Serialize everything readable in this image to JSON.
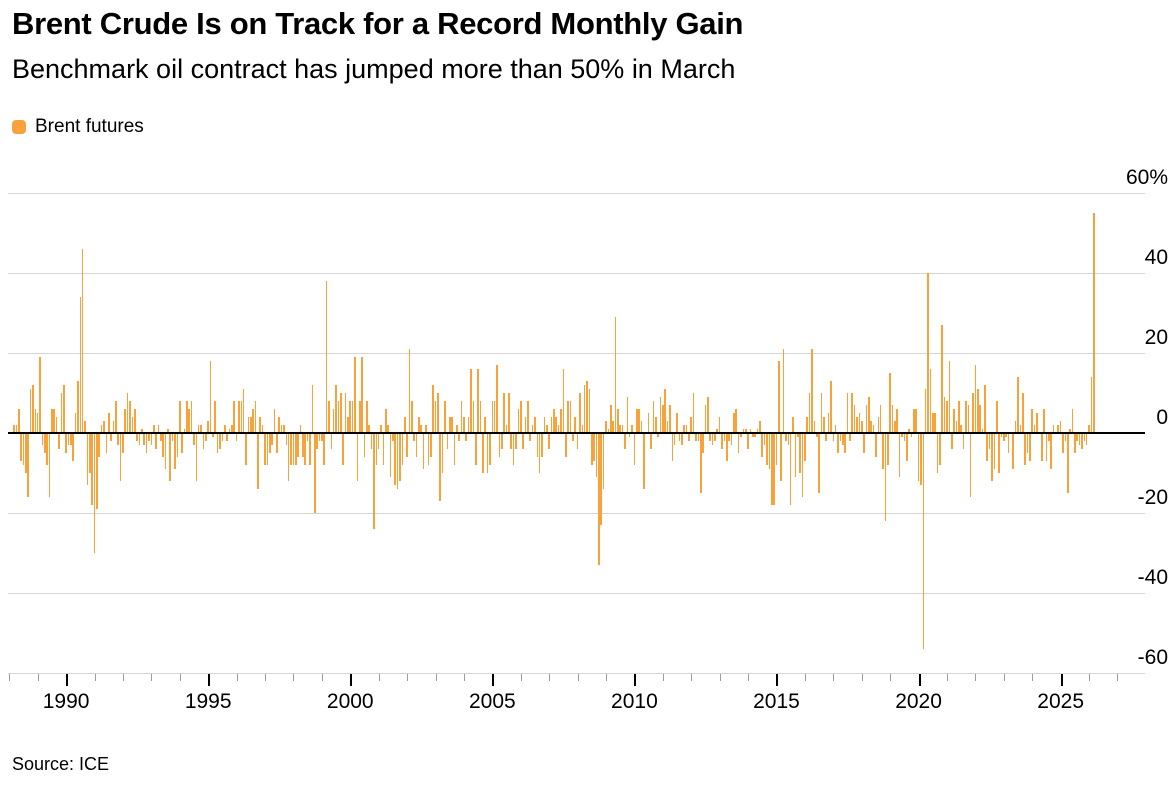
{
  "header": {
    "title": "Brent Crude Is on Track for a Record Monthly Gain",
    "subtitle": "Benchmark oil contract has jumped more than 50% in March"
  },
  "legend": {
    "label": "Brent futures"
  },
  "source": "Source: ICE",
  "colors": {
    "bar": "#F8A23C",
    "grid": "#d5d5d5",
    "zero_line": "#000000",
    "minor_tick": "#9b9b9b",
    "major_tick": "#000000"
  },
  "chart_data": {
    "type": "bar",
    "title": "Brent Crude Is on Track for a Record Monthly Gain",
    "subtitle": "Benchmark oil contract has jumped more than 50% in March",
    "series_name": "Brent futures",
    "unit": "% monthly change",
    "frequency": "monthly",
    "start": "1988-03",
    "end": "2026-03",
    "ylim": [
      -60,
      60
    ],
    "grid": true,
    "legend_position": "top-left",
    "y_axis": {
      "ticks": [
        60,
        40,
        20,
        0,
        -20,
        -40,
        -60
      ],
      "tick_labels": [
        "60%",
        "40",
        "20",
        "0",
        "-20",
        "-40",
        "-60"
      ],
      "side": "right"
    },
    "x_axis": {
      "minor_tick_years_start": 1988,
      "minor_tick_years_end": 2027,
      "major_tick_years": [
        1990,
        1995,
        2000,
        2005,
        2010,
        2015,
        2020,
        2025
      ],
      "major_tick_labels": [
        "1990",
        "1995",
        "2000",
        "2005",
        "2010",
        "2015",
        "2020",
        "2025"
      ]
    },
    "values": [
      2,
      2,
      6,
      -7,
      -8,
      -10,
      -16,
      11,
      12,
      6,
      5,
      19,
      -3,
      -5,
      -8,
      -16,
      6,
      6,
      4,
      -4,
      10,
      12,
      -5,
      -3,
      -3,
      -7,
      5,
      13,
      34,
      46,
      3,
      -13,
      -10,
      -18,
      -30,
      -19,
      -6,
      2,
      3,
      -5,
      5,
      -2,
      3,
      8,
      -3,
      -12,
      -5,
      6,
      10,
      8,
      4,
      6,
      -2,
      -3,
      1,
      -3,
      -5,
      -2,
      -3,
      2,
      -4,
      2,
      -2,
      -6,
      -9,
      1,
      -12,
      -2,
      -9,
      -6,
      8,
      -5,
      1,
      8,
      6,
      8,
      -3,
      -12,
      2,
      2,
      -4,
      -2,
      3,
      18,
      -1,
      8,
      -5,
      -4,
      -2,
      2,
      -2,
      1,
      2,
      8,
      -2,
      8,
      8,
      11,
      -8,
      4,
      4,
      6,
      8,
      -14,
      4,
      2,
      -8,
      -8,
      -5,
      -3,
      6,
      -5,
      4,
      2,
      2,
      -3,
      -12,
      -8,
      -8,
      -8,
      -6,
      2,
      -6,
      -8,
      -2,
      -8,
      12,
      -20,
      -4,
      -2,
      -2,
      -8,
      38,
      8,
      -4,
      6,
      12,
      8,
      10,
      -8,
      10,
      4,
      8,
      8,
      19,
      -12,
      8,
      19,
      -6,
      8,
      2,
      -4,
      -24,
      -8,
      -4,
      2,
      -8,
      6,
      2,
      -11,
      -2,
      -13,
      -14,
      -12,
      -8,
      4,
      -6,
      21,
      8,
      -2,
      -6,
      4,
      2,
      -9,
      2,
      -8,
      -6,
      12,
      8,
      10,
      -17,
      -10,
      8,
      -4,
      4,
      4,
      -8,
      2,
      -2,
      8,
      4,
      -2,
      4,
      16,
      8,
      -8,
      16,
      8,
      -10,
      4,
      -10,
      -8,
      8,
      8,
      17,
      -6,
      -4,
      10,
      2,
      10,
      -4,
      -8,
      -4,
      6,
      8,
      -4,
      4,
      8,
      -2,
      2,
      4,
      -6,
      -10,
      -6,
      4,
      2,
      -4,
      4,
      6,
      4,
      2,
      6,
      16,
      -6,
      8,
      8,
      -2,
      4,
      -4,
      10,
      2,
      12,
      13,
      11,
      -8,
      -7,
      -11,
      -33,
      -23,
      -14,
      3,
      1,
      7,
      3,
      29,
      6,
      2,
      2,
      -4,
      9,
      -1,
      2,
      -8,
      6,
      6,
      3,
      -14,
      0,
      5,
      -4,
      8,
      4,
      -1,
      9,
      7,
      11,
      3,
      7,
      -7,
      -3,
      5,
      -2,
      -3,
      2,
      2,
      -2,
      4,
      10,
      -2,
      -2,
      -15,
      -5,
      7,
      9,
      -2,
      -3,
      -2,
      1,
      4,
      -4,
      -2,
      -7,
      -2,
      -3,
      5,
      6,
      -5,
      -1,
      1,
      1,
      -4,
      1,
      -1,
      -1,
      1,
      3,
      -6,
      -3,
      -8,
      -9,
      -18,
      -18,
      -8,
      18,
      -12,
      21,
      -2,
      -3,
      -18,
      4,
      -11,
      -1,
      -10,
      -16,
      -7,
      4,
      10,
      21,
      3,
      -1,
      -15,
      10,
      4,
      -2,
      5,
      13,
      -2,
      2,
      -5,
      -2,
      -3,
      -5,
      10,
      -2,
      10,
      7,
      4,
      5,
      3,
      -5,
      7,
      9,
      3,
      2,
      -6,
      4,
      7,
      -9,
      -22,
      -8,
      15,
      7,
      3,
      6,
      -11,
      -1,
      -2,
      -7,
      1,
      -1,
      6,
      6,
      -12,
      -13,
      -54,
      11,
      40,
      16,
      5,
      5,
      -10,
      -8,
      27,
      9,
      8,
      18,
      -4,
      6,
      3,
      8,
      2,
      -4,
      8,
      7,
      -16,
      10,
      17,
      11,
      7,
      1,
      12,
      -7,
      -4,
      -12,
      -9,
      8,
      -10,
      -1,
      -2,
      -1,
      -5,
      0,
      -9,
      3,
      14,
      2,
      10,
      -8,
      -5,
      -7,
      6,
      2,
      5,
      0,
      -7,
      6,
      -7,
      -2,
      -9,
      2,
      0,
      2,
      3,
      -5,
      -2,
      -15,
      1,
      6,
      -5,
      -2,
      -3,
      -4,
      -2,
      -3,
      2,
      14,
      55
    ]
  }
}
